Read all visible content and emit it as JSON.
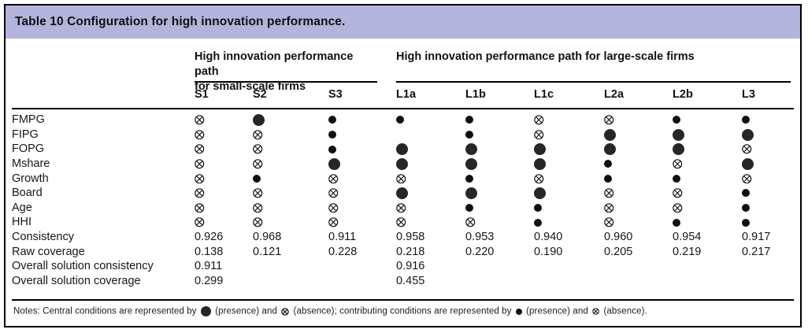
{
  "title": "Table 10 Configuration for high innovation performance.",
  "colors": {
    "title_bar": "#b3b3dc",
    "border": "#000000",
    "symbol": "#1a1a1a"
  },
  "groups": [
    {
      "label": "High innovation performance path\nfor small-scale firms",
      "span": 3
    },
    {
      "label": "High innovation performance path for large-scale firms",
      "span": 6
    }
  ],
  "columns": [
    "S1",
    "S2",
    "S3",
    "L1a",
    "L1b",
    "L1c",
    "L2a",
    "L2b",
    "L3"
  ],
  "symbol_codes": {
    "CP": "central condition present (large filled circle)",
    "cp": "contributing condition present (small filled circle)",
    "CA": "central condition absent (large crossed circle)",
    "ca": "contributing condition absent (small crossed circle)"
  },
  "rows": [
    {
      "label": "FMPG",
      "type": "symbols",
      "cells": [
        "ca",
        "CP",
        "cp",
        "cp",
        "cp",
        "ca",
        "ca",
        "cp",
        "cp"
      ]
    },
    {
      "label": "FIPG",
      "type": "symbols",
      "cells": [
        "ca",
        "ca",
        "cp",
        "",
        "cp",
        "ca",
        "CP",
        "CP",
        "CP"
      ]
    },
    {
      "label": "FOPG",
      "type": "symbols",
      "cells": [
        "ca",
        "ca",
        "cp",
        "CP",
        "CP",
        "CP",
        "CP",
        "CP",
        "ca"
      ]
    },
    {
      "label": "Mshare",
      "type": "symbols",
      "cells": [
        "ca",
        "ca",
        "CP",
        "CP",
        "CP",
        "CP",
        "cp",
        "ca",
        "CP"
      ]
    },
    {
      "label": "Growth",
      "type": "symbols",
      "cells": [
        "ca",
        "cp",
        "ca",
        "ca",
        "cp",
        "ca",
        "cp",
        "cp",
        "ca"
      ]
    },
    {
      "label": "Board",
      "type": "symbols",
      "cells": [
        "ca",
        "ca",
        "ca",
        "CP",
        "CP",
        "CP",
        "ca",
        "ca",
        "cp"
      ]
    },
    {
      "label": "Age",
      "type": "symbols",
      "cells": [
        "ca",
        "ca",
        "ca",
        "ca",
        "cp",
        "cp",
        "ca",
        "ca",
        "cp"
      ]
    },
    {
      "label": "HHI",
      "type": "symbols",
      "cells": [
        "ca",
        "ca",
        "ca",
        "ca",
        "ca",
        "cp",
        "ca",
        "cp",
        "cp"
      ]
    },
    {
      "label": "Consistency",
      "type": "values",
      "cells": [
        "0.926",
        "0.968",
        "0.911",
        "0.958",
        "0.953",
        "0.940",
        "0.960",
        "0.954",
        "0.917"
      ]
    },
    {
      "label": "Raw coverage",
      "type": "values",
      "cells": [
        "0.138",
        "0.121",
        "0.228",
        "0.218",
        "0.220",
        "0.190",
        "0.205",
        "0.219",
        "0.217"
      ]
    },
    {
      "label": "Overall solution consistency",
      "type": "values",
      "cells": [
        "0.911",
        "",
        "",
        "0.916",
        "",
        "",
        "",
        "",
        ""
      ]
    },
    {
      "label": "Overall solution coverage",
      "type": "values",
      "cells": [
        "0.299",
        "",
        "",
        "0.455",
        "",
        "",
        "",
        "",
        ""
      ]
    }
  ],
  "notes": {
    "parts": [
      "Notes: Central conditions are represented by ",
      " (presence) and ",
      " (absence); contributing conditions are represented by ",
      " (presence) and ",
      " (absence)."
    ]
  }
}
